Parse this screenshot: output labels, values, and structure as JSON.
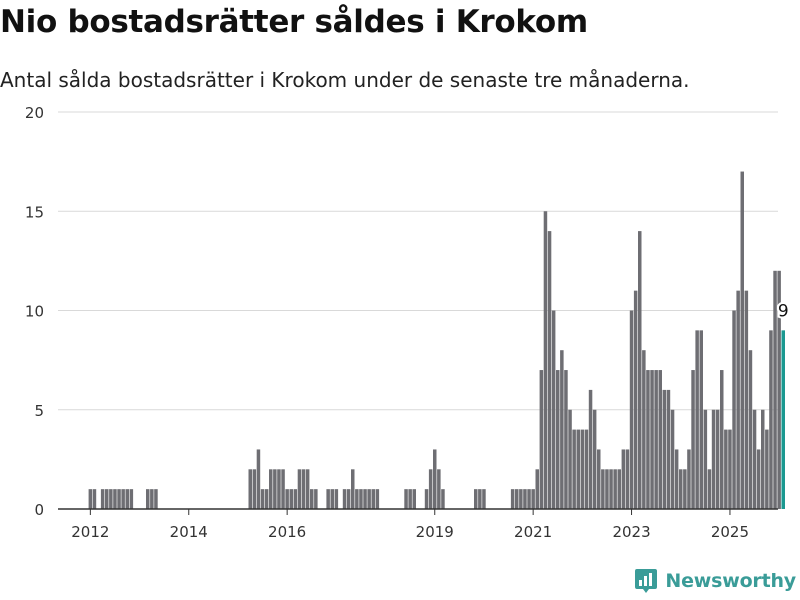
{
  "title": "Nio bostadsrätter såldes i Krokom",
  "subtitle": "Antal sålda bostadsrätter i Krokom under de senaste tre månaderna.",
  "brand": {
    "name": "Newsworthy",
    "icon": "newsworthy-logo-icon",
    "color": "#3a9c98"
  },
  "chart_data": {
    "type": "bar",
    "title": "",
    "xlabel": "",
    "ylabel": "",
    "ylim": [
      0,
      20
    ],
    "yticks": [
      "0",
      "5",
      "10",
      "15",
      "20"
    ],
    "xticks": [
      "2012",
      "2014",
      "2016",
      "2019",
      "2021",
      "2023",
      "2025"
    ],
    "grid": true,
    "bar_color": "#6e6e73",
    "highlight_color": "#1a9890",
    "highlight_label": "9",
    "start_month": "2011-10",
    "series": [
      {
        "values": [
          0,
          0,
          0,
          1,
          1,
          0,
          1,
          1,
          1,
          1,
          1,
          1,
          1,
          1,
          0,
          0,
          0,
          1,
          1,
          1,
          0,
          0,
          0,
          0,
          0,
          0,
          0,
          0,
          0,
          0,
          0,
          0,
          0,
          0,
          0,
          0,
          0,
          0,
          0,
          0,
          0,
          0,
          2,
          2,
          3,
          1,
          1,
          2,
          2,
          2,
          2,
          1,
          1,
          1,
          2,
          2,
          2,
          1,
          1,
          0,
          0,
          1,
          1,
          1,
          0,
          1,
          1,
          2,
          1,
          1,
          1,
          1,
          1,
          1,
          0,
          0,
          0,
          0,
          0,
          0,
          1,
          1,
          1,
          0,
          0,
          1,
          2,
          3,
          2,
          1,
          0,
          0,
          0,
          0,
          0,
          0,
          0,
          1,
          1,
          1,
          0,
          0,
          0,
          0,
          0,
          0,
          1,
          1,
          1,
          1,
          1,
          1,
          2,
          7,
          15,
          14,
          10,
          7,
          8,
          7,
          5,
          4,
          4,
          4,
          4,
          6,
          5,
          3,
          2,
          2,
          2,
          2,
          2,
          3,
          3,
          10,
          11,
          14,
          8,
          7,
          7,
          7,
          7,
          6,
          6,
          5,
          3,
          2,
          2,
          3,
          7,
          9,
          9,
          5,
          2,
          5,
          5,
          7,
          4,
          4,
          10,
          11,
          17,
          11,
          8,
          5,
          3,
          5,
          4,
          9,
          12,
          12,
          9
        ]
      }
    ]
  }
}
